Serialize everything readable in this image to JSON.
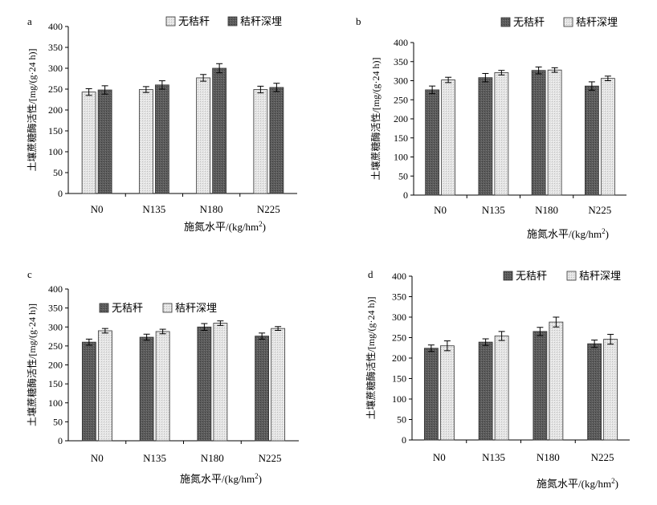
{
  "colors": {
    "dark_bar": "#606060",
    "light_bar": "#dedede",
    "axis": "#000000",
    "error_bar": "#000000"
  },
  "chart_data": [
    {
      "type": "bar",
      "panel_label": "a",
      "categories": [
        "N0",
        "N135",
        "N180",
        "N225"
      ],
      "xlabel": "施氮水平/(kg/hm²)",
      "ylabel": "土壤蔗糖酶活性/[mg/(g·24 h)]",
      "ylim": [
        0,
        400
      ],
      "yticks": [
        0,
        50,
        100,
        150,
        200,
        250,
        300,
        350,
        400
      ],
      "legend_position": "top",
      "series": [
        {
          "name": "无秸秆",
          "style": "light",
          "values": [
            243,
            249,
            277,
            249
          ],
          "errors": [
            8,
            7,
            8,
            8
          ]
        },
        {
          "name": "秸秆深埋",
          "style": "dark",
          "values": [
            248,
            260,
            300,
            254
          ],
          "errors": [
            10,
            10,
            11,
            10
          ]
        }
      ]
    },
    {
      "type": "bar",
      "panel_label": "b",
      "categories": [
        "N0",
        "N135",
        "N180",
        "N225"
      ],
      "xlabel": "施氮水平/(kg/hm²)",
      "ylabel": "土壤蔗糖酶活性/[mg/(g·24 h)]",
      "ylim": [
        0,
        400
      ],
      "yticks": [
        0,
        50,
        100,
        150,
        200,
        250,
        300,
        350,
        400
      ],
      "legend_position": "top",
      "series": [
        {
          "name": "无秸秆",
          "style": "dark",
          "values": [
            276,
            308,
            327,
            286
          ],
          "errors": [
            10,
            11,
            9,
            11
          ]
        },
        {
          "name": "秸秆深埋",
          "style": "light",
          "values": [
            302,
            321,
            328,
            306
          ],
          "errors": [
            7,
            6,
            6,
            6
          ]
        }
      ]
    },
    {
      "type": "bar",
      "panel_label": "c",
      "categories": [
        "N0",
        "N135",
        "N180",
        "N225"
      ],
      "xlabel": "施氮水平/(kg/hm²)",
      "ylabel": "土壤蔗糖酶活性/[mg/(g·24 h)]",
      "ylim": [
        0,
        400
      ],
      "yticks": [
        0,
        50,
        100,
        150,
        200,
        250,
        300,
        350,
        400
      ],
      "legend_position": "top",
      "series": [
        {
          "name": "无秸秆",
          "style": "dark",
          "values": [
            260,
            273,
            300,
            276
          ],
          "errors": [
            8,
            8,
            9,
            8
          ]
        },
        {
          "name": "秸秆深埋",
          "style": "light",
          "values": [
            290,
            288,
            310,
            296
          ],
          "errors": [
            6,
            6,
            6,
            5
          ]
        }
      ]
    },
    {
      "type": "bar",
      "panel_label": "d",
      "categories": [
        "N0",
        "N135",
        "N180",
        "N225"
      ],
      "xlabel": "施氮水平/(kg/hm²)",
      "ylabel": "土壤蔗糖酶活性/[mg/(g·24 h)]",
      "ylim": [
        0,
        400
      ],
      "yticks": [
        0,
        50,
        100,
        150,
        200,
        250,
        300,
        350,
        400
      ],
      "legend_position": "top",
      "series": [
        {
          "name": "无秸秆",
          "style": "dark",
          "values": [
            224,
            239,
            265,
            235
          ],
          "errors": [
            8,
            8,
            10,
            9
          ]
        },
        {
          "name": "秸秆深埋",
          "style": "light",
          "values": [
            230,
            254,
            288,
            246
          ],
          "errors": [
            12,
            11,
            12,
            12
          ]
        }
      ]
    }
  ]
}
